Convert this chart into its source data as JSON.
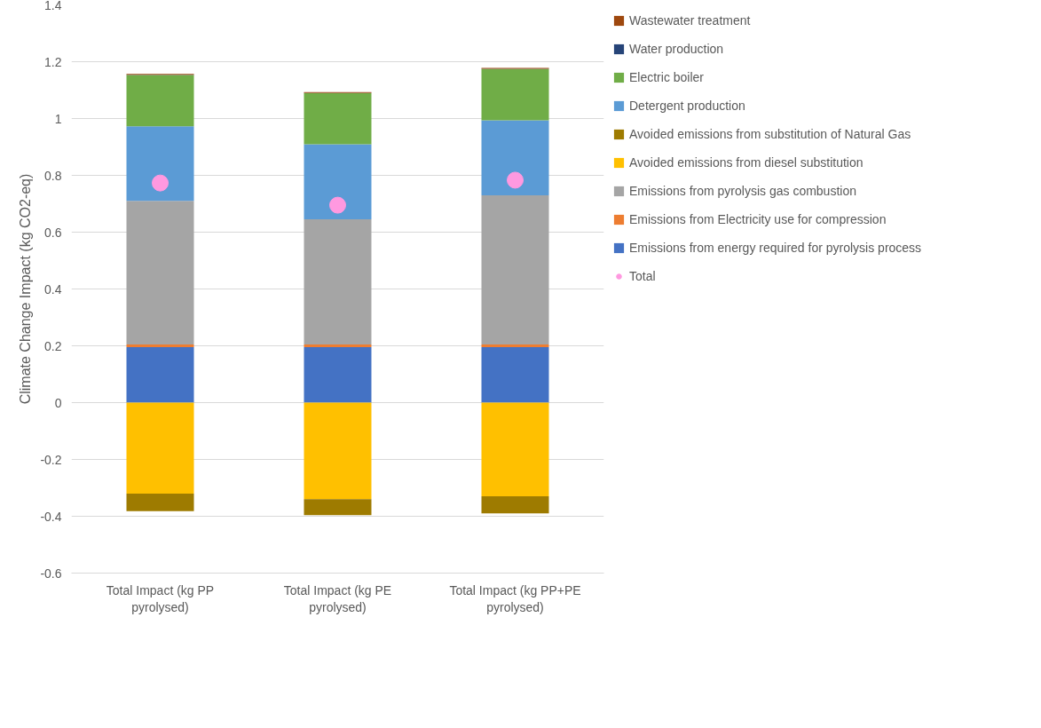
{
  "chart_data": {
    "type": "bar",
    "stacked": true,
    "ylabel": "Climate Change Impact (kg CO2-eq)",
    "categories": [
      "Total Impact (kg PP pyrolysed)",
      "Total Impact (kg PE pyrolysed)",
      "Total Impact (kg PP+PE pyrolysed)"
    ],
    "series": [
      {
        "name": "Emissions from energy required for pyrolysis process",
        "color": "#4472c4",
        "values": [
          0.195,
          0.195,
          0.195
        ]
      },
      {
        "name": "Emissions from Electricity use for compression",
        "color": "#ed7d31",
        "values": [
          0.01,
          0.01,
          0.01
        ]
      },
      {
        "name": "Emissions from pyrolysis gas combustion",
        "color": "#a5a5a5",
        "values": [
          0.505,
          0.44,
          0.525
        ]
      },
      {
        "name": "Avoided emissions from diesel substitution",
        "color": "#ffc000",
        "values": [
          -0.32,
          -0.34,
          -0.33
        ]
      },
      {
        "name": "Avoided emissions from substitution of Natural Gas",
        "color": "#9e7b00",
        "values": [
          -0.062,
          -0.056,
          -0.06
        ]
      },
      {
        "name": "Detergent production",
        "color": "#5b9bd5",
        "values": [
          0.263,
          0.264,
          0.264
        ]
      },
      {
        "name": "Electric boiler",
        "color": "#70ad47",
        "values": [
          0.18,
          0.18,
          0.18
        ]
      },
      {
        "name": "Water production",
        "color": "#264478",
        "values": [
          0.001,
          0.001,
          0.001
        ]
      },
      {
        "name": "Wastewater treatment",
        "color": "#9e480e",
        "values": [
          0.003,
          0.003,
          0.003
        ]
      },
      {
        "name": "Total",
        "type": "scatter",
        "marker": "circle",
        "color": "#ff99e0",
        "x": [
          "Total Impact (kg PP pyrolysed)",
          "Total Impact (kg PE pyrolysed)",
          "Total Impact (kg PP+PE pyrolysed)"
        ],
        "values": [
          0.773,
          0.695,
          0.783
        ]
      }
    ],
    "ylim": [
      -0.6,
      1.4
    ],
    "yticks": [
      -0.6,
      -0.4,
      -0.2,
      0,
      0.2,
      0.4,
      0.6,
      0.8,
      1,
      1.2,
      1.4
    ],
    "grid": "y",
    "legend": "right"
  }
}
